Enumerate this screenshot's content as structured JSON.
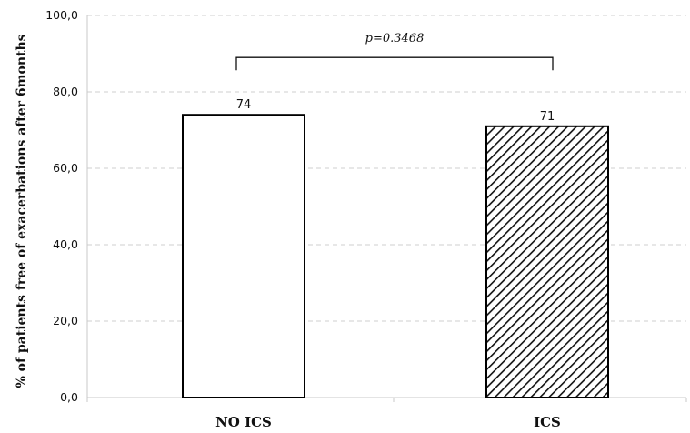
{
  "chart_data": {
    "type": "bar",
    "title": "",
    "xlabel": "",
    "ylabel": "% of patients free of exacerbations after 6months",
    "categories": [
      "NO ICS",
      "ICS"
    ],
    "values": [
      74,
      71
    ],
    "data_labels": [
      "74",
      "71"
    ],
    "ylim": [
      0,
      100
    ],
    "yticks": [
      0,
      20,
      40,
      60,
      80,
      100
    ],
    "ytick_labels": [
      "0,0",
      "20,0",
      "40,0",
      "60,0",
      "80,0",
      "100,0"
    ],
    "grid": "horizontal dashed",
    "legend": "none",
    "bar_fills": [
      "white",
      "diagonal-hatch"
    ],
    "bar_stroke_color": "#000000",
    "annotation": {
      "text": "p=0.3468",
      "type": "significance-bracket",
      "between": [
        "NO ICS",
        "ICS"
      ],
      "level": 89
    }
  }
}
